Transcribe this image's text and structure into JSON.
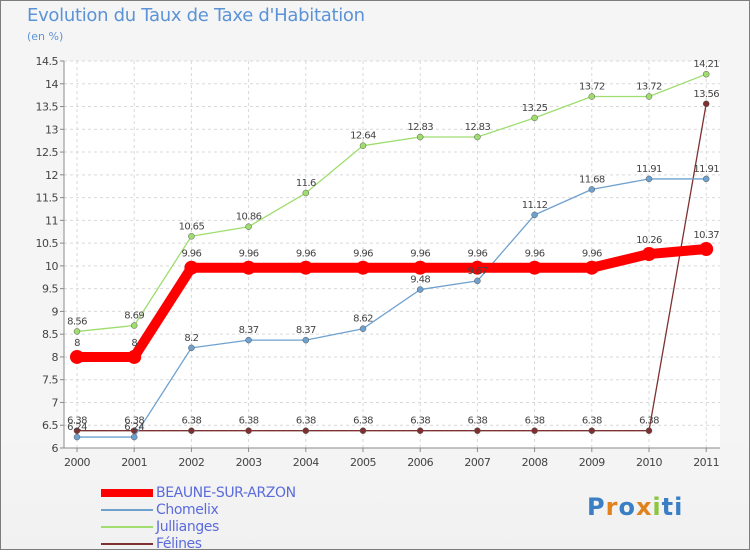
{
  "chart_data": {
    "type": "line",
    "title": "Evolution du Taux de Taxe d'Habitation",
    "subtitle": "(en %)",
    "categories": [
      "2000",
      "2001",
      "2002",
      "2003",
      "2004",
      "2005",
      "2006",
      "2007",
      "2008",
      "2009",
      "2010",
      "2011"
    ],
    "ylim": [
      6,
      14.5
    ],
    "yticks": [
      "6",
      "6.5",
      "7",
      "7.5",
      "8",
      "8.5",
      "9",
      "9.5",
      "10",
      "10.5",
      "11",
      "11.5",
      "12",
      "12.5",
      "13",
      "13.5",
      "14",
      "14.5"
    ],
    "grid": true,
    "legend_position": "bottom-left",
    "series": [
      {
        "name": "BEAUNE-SUR-ARZON",
        "color": "#ff0000",
        "values": [
          8,
          8,
          9.96,
          9.96,
          9.96,
          9.96,
          9.96,
          9.96,
          9.96,
          9.96,
          10.26,
          10.37
        ],
        "labels": [
          "8",
          "8",
          "9.96",
          "9.96",
          "9.96",
          "9.96",
          "9.96",
          "9.96",
          "9.96",
          "9.96",
          "10.26",
          "10.37"
        ]
      },
      {
        "name": "Chomelix",
        "color": "#6fa1cf",
        "values": [
          6.24,
          6.24,
          8.2,
          8.37,
          8.37,
          8.62,
          9.48,
          9.67,
          11.12,
          11.68,
          11.91,
          11.91
        ],
        "labels": [
          "6.24",
          "6.24",
          "8.2",
          "8.37",
          "8.37",
          "8.62",
          "9.48",
          "9.67",
          "11.12",
          "11.68",
          "11.91",
          "11.91"
        ]
      },
      {
        "name": "Jullianges",
        "color": "#9fdd6f",
        "values": [
          8.56,
          8.69,
          10.65,
          10.86,
          11.6,
          12.64,
          12.83,
          12.83,
          13.25,
          13.72,
          13.72,
          14.21
        ],
        "labels": [
          "8.56",
          "8.69",
          "10.65",
          "10.86",
          "11.6",
          "12.64",
          "12.83",
          "12.83",
          "13.25",
          "13.72",
          "13.72",
          "14.21"
        ]
      },
      {
        "name": "Félines",
        "color": "#7d3131",
        "values": [
          6.38,
          6.38,
          6.38,
          6.38,
          6.38,
          6.38,
          6.38,
          6.38,
          6.38,
          6.38,
          6.38,
          13.56
        ],
        "labels": [
          "6.38",
          "6.38",
          "6.38",
          "6.38",
          "6.38",
          "6.38",
          "6.38",
          "6.38",
          "6.38",
          "6.38",
          "6.38",
          "13.56"
        ]
      }
    ]
  },
  "logo": {
    "letters": [
      "P",
      "r",
      "o",
      "x",
      "i",
      "ti"
    ]
  }
}
